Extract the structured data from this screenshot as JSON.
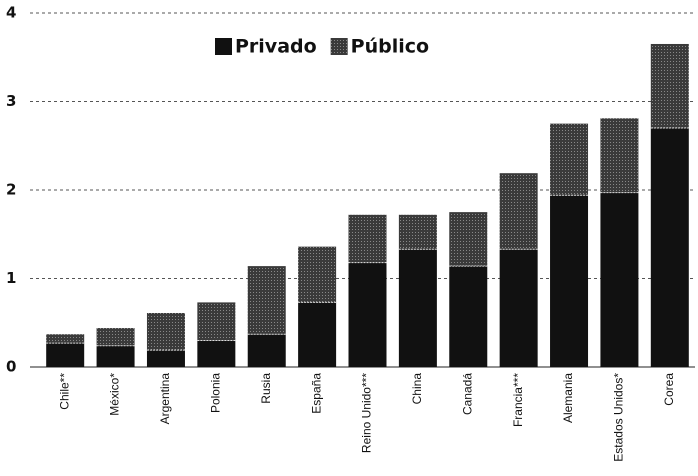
{
  "chart_data": {
    "type": "stacked_bar",
    "categories": [
      "Chile**",
      "México*",
      "Argentina",
      "Polonia",
      "Rusia",
      "España",
      "Reino Unido***",
      "China",
      "Canadá",
      "Francia***",
      "Alemania",
      "Estados Unidos*",
      "Corea"
    ],
    "series": [
      {
        "name": "Privado",
        "color": "#111111",
        "values": [
          0.27,
          0.24,
          0.19,
          0.3,
          0.37,
          0.73,
          1.18,
          1.33,
          1.14,
          1.33,
          1.94,
          1.97,
          2.7
        ]
      },
      {
        "name": "Público",
        "color": "#4a4a4a",
        "values": [
          0.1,
          0.2,
          0.42,
          0.43,
          0.77,
          0.63,
          0.54,
          0.39,
          0.61,
          0.86,
          0.81,
          0.84,
          0.95
        ]
      }
    ],
    "ylim": [
      0,
      4
    ],
    "yticks": [
      0,
      1,
      2,
      3,
      4
    ],
    "grid": true
  }
}
